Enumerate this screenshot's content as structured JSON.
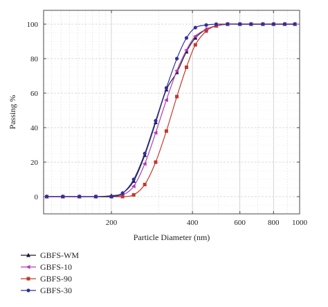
{
  "chart_data": {
    "type": "line",
    "xlabel": "Particle Diameter (nm)",
    "ylabel": "Passing %",
    "x_scale": "log",
    "xlim": [
      112,
      1000
    ],
    "ylim": [
      -10,
      108
    ],
    "x_tick_labels": [
      "200",
      "400",
      "600",
      "800",
      "1000"
    ],
    "y_tick_labels": [
      "0",
      "20",
      "40",
      "60",
      "80",
      "100"
    ],
    "grid": true,
    "legend_placement": "bottom-left, below plot",
    "series": [
      {
        "name": "GBFS-WM",
        "color": "#1a1a2e",
        "marker": "triangle",
        "x": [
          115,
          132,
          152,
          175,
          200,
          220,
          242,
          266,
          292,
          320,
          350,
          380,
          410,
          450,
          490,
          540,
          600,
          660,
          730,
          800,
          880,
          960
        ],
        "y": [
          0,
          0,
          0,
          0,
          0.5,
          2,
          9,
          24,
          43,
          62,
          72,
          84,
          92,
          97,
          99,
          100,
          100,
          100,
          100,
          100,
          100,
          100
        ]
      },
      {
        "name": "GBFS-10",
        "color": "#b23ab8",
        "marker": "triangle-left",
        "x": [
          115,
          132,
          152,
          175,
          200,
          220,
          242,
          266,
          292,
          320,
          350,
          380,
          410,
          450,
          490,
          540,
          600,
          660,
          730,
          800,
          880,
          960
        ],
        "y": [
          0,
          0,
          0,
          0,
          0,
          1,
          6,
          19,
          37,
          56,
          73,
          85,
          93,
          97,
          99,
          100,
          100,
          100,
          100,
          100,
          100,
          100
        ]
      },
      {
        "name": "GBFS-90",
        "color": "#c0392b",
        "marker": "square",
        "x": [
          115,
          132,
          152,
          175,
          200,
          220,
          242,
          266,
          292,
          320,
          350,
          380,
          410,
          450,
          490,
          540,
          600,
          660,
          730,
          800,
          880,
          960
        ],
        "y": [
          0,
          0,
          0,
          0,
          0,
          0,
          1,
          7,
          20,
          38,
          58,
          75,
          88,
          96,
          99,
          100,
          100,
          100,
          100,
          100,
          100,
          100
        ]
      },
      {
        "name": "GBFS-30",
        "color": "#2e2e9e",
        "marker": "circle",
        "x": [
          115,
          132,
          152,
          175,
          200,
          220,
          242,
          266,
          292,
          320,
          350,
          380,
          410,
          450,
          490,
          540,
          600,
          660,
          730,
          800,
          880,
          960
        ],
        "y": [
          0,
          0,
          0,
          0,
          0,
          2,
          10,
          25,
          44,
          63,
          80,
          92,
          98,
          99.5,
          100,
          100,
          100,
          100,
          100,
          100,
          100,
          100
        ]
      }
    ]
  }
}
